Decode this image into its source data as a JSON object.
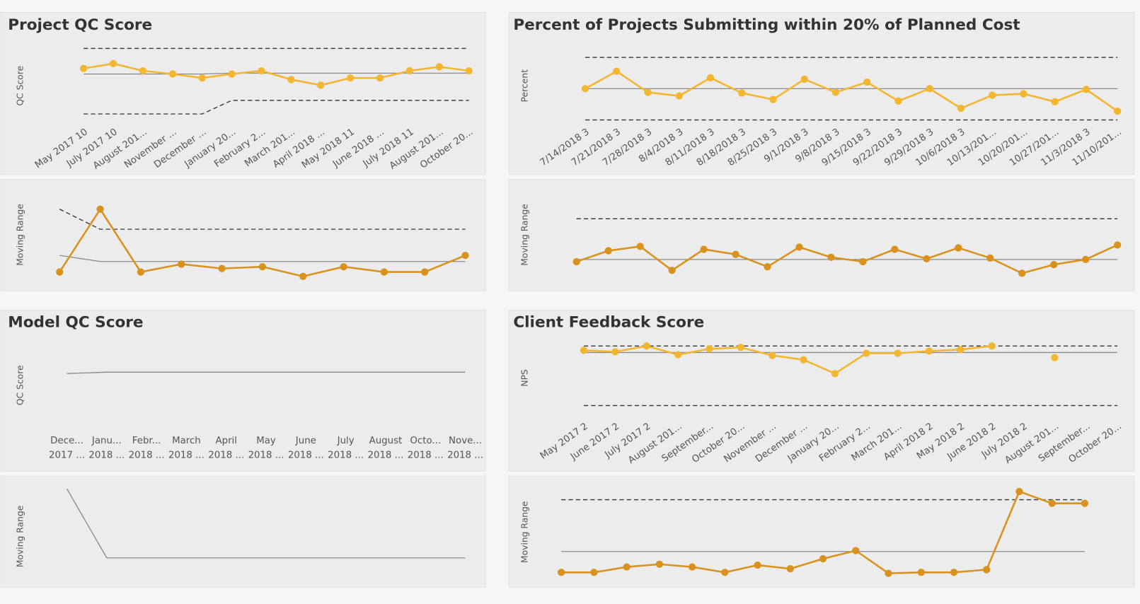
{
  "chart_data": [
    {
      "type": "line",
      "title": "Project QC Score",
      "y_label": "QC Score",
      "color": "#F2B631",
      "ylim": [
        0,
        100
      ],
      "categories": [
        "May 2017 10",
        "July 2017 10",
        "August 201...",
        "November ...",
        "December ...",
        "January 20...",
        "February 2...",
        "March 201...",
        "April 2018 ...",
        "May 2018 11",
        "June 2018 ...",
        "July 2018 11",
        "August 201...",
        "October 20..."
      ],
      "values": [
        69,
        75,
        66,
        62,
        57,
        62,
        66,
        55,
        48,
        57,
        57,
        66,
        71,
        66
      ],
      "center_line": [
        62,
        62,
        62,
        62,
        62,
        63,
        63,
        63,
        63,
        63,
        63,
        63,
        63,
        63
      ],
      "upper_limit": [
        94,
        94,
        94,
        94,
        94,
        94,
        94,
        94,
        94,
        94,
        94,
        94,
        94,
        94
      ],
      "lower_limit": [
        12,
        12,
        12,
        12,
        12,
        29,
        29,
        29,
        29,
        29,
        29,
        29,
        29,
        29
      ]
    },
    {
      "type": "line",
      "y_label": "Moving Range",
      "color": "#D9921E",
      "ylim": [
        0,
        100
      ],
      "values": [
        9,
        81,
        9,
        18,
        13,
        15,
        4,
        15,
        9,
        9,
        28
      ],
      "center_line": [
        28,
        21,
        21,
        21,
        21,
        21,
        21,
        21,
        21,
        21,
        21
      ],
      "upper_limit": [
        81,
        58,
        58,
        58,
        58,
        58,
        58,
        58,
        58,
        58,
        58
      ]
    },
    {
      "type": "line",
      "title": "Percent of Projects Submitting within 20% of Planned Cost",
      "y_label": "Percent",
      "color": "#F2B631",
      "ylim": [
        0,
        100
      ],
      "categories": [
        "7/14/2018 3",
        "7/21/2018 3",
        "7/28/2018 3",
        "8/4/2018 3",
        "8/11/2018 3",
        "8/18/2018 3",
        "8/25/2018 3",
        "9/1/2018 3",
        "9/8/2018 3",
        "9/15/2018 3",
        "9/22/2018 3",
        "9/29/2018 3",
        "10/6/2018 3",
        "10/13/201...",
        "10/20/201...",
        "10/27/201...",
        "11/3/2018 3",
        "11/10/201..."
      ],
      "values": [
        48,
        72,
        43,
        38,
        63,
        42,
        33,
        61,
        43,
        57,
        31,
        48,
        21,
        39,
        41,
        30,
        47,
        17
      ],
      "center_line": [
        48,
        48,
        48,
        48,
        48,
        48,
        48,
        48,
        48,
        48,
        48,
        48,
        48,
        48,
        48,
        48,
        48,
        48
      ],
      "upper_limit": [
        91,
        91,
        91,
        91,
        91,
        91,
        91,
        91,
        91,
        91,
        91,
        91,
        91,
        91,
        91,
        91,
        91,
        91
      ],
      "lower_limit": [
        5,
        5,
        5,
        5,
        5,
        5,
        5,
        5,
        5,
        5,
        5,
        5,
        5,
        5,
        5,
        5,
        5,
        5
      ]
    },
    {
      "type": "line",
      "y_label": "Moving Range",
      "color": "#D9921E",
      "ylim": [
        0,
        100
      ],
      "values": [
        25,
        40,
        46,
        13,
        42,
        35,
        18,
        45,
        31,
        25,
        42,
        29,
        44,
        30,
        9,
        21,
        28,
        48
      ],
      "center_line": [
        28,
        28,
        28,
        28,
        28,
        28,
        28,
        28,
        28,
        28,
        28,
        28,
        28,
        28,
        28,
        28,
        28,
        28
      ],
      "upper_limit": [
        84,
        84,
        84,
        84,
        84,
        84,
        84,
        84,
        84,
        84,
        84,
        84,
        84,
        84,
        84,
        84,
        84,
        84
      ]
    },
    {
      "type": "line",
      "title": "Model QC Score",
      "y_label": "QC Score",
      "color": "#F2B631",
      "ylim": [
        0,
        100
      ],
      "categories": [
        "Dece... 2017 ...",
        "Janu... 2018 ...",
        "Febr... 2018 ...",
        "March 2018 ...",
        "April 2018 ...",
        "May 2018 ...",
        "June 2018 ...",
        "July 2018 ...",
        "August 2018 ...",
        "Octo... 2018 ...",
        "Nove... 2018 ..."
      ],
      "center_line": [
        76,
        78,
        78,
        78,
        78,
        78,
        78,
        78,
        78,
        78,
        78
      ]
    },
    {
      "type": "line",
      "y_label": "Moving Range",
      "color": "#D9921E",
      "ylim": [
        0,
        100
      ],
      "center_line": [
        94,
        18,
        18,
        18,
        18,
        18,
        18,
        18,
        18,
        18,
        18
      ]
    },
    {
      "type": "line",
      "title": "Client Feedback Score",
      "y_label": "NPS",
      "color": "#F2B631",
      "ylim": [
        0,
        100
      ],
      "categories": [
        "May 2017 2",
        "June 2017 2",
        "July 2017 2",
        "August 201...",
        "September...",
        "October 20...",
        "November ...",
        "December ...",
        "January 20...",
        "February 2...",
        "March 201...",
        "April 2018 2",
        "May 2018 2",
        "June 2018 2",
        "July 2018 2",
        "August 201...",
        "September...",
        "October 20..."
      ],
      "values": [
        88,
        86,
        94,
        82,
        90,
        92,
        81,
        75,
        56,
        84,
        84,
        87,
        89,
        94,
        null,
        78,
        null,
        null
      ],
      "center_line": [
        85,
        85,
        85,
        85,
        85,
        85,
        85,
        85,
        85,
        85,
        85,
        85,
        85,
        85,
        85,
        85,
        85,
        85
      ],
      "upper_limit": [
        94,
        94,
        94,
        94,
        94,
        94,
        94,
        94,
        94,
        94,
        94,
        94,
        94,
        94,
        94,
        94,
        94,
        94
      ],
      "lower_limit": [
        12,
        12,
        12,
        12,
        12,
        12,
        12,
        12,
        12,
        12,
        12,
        12,
        12,
        12,
        12,
        12,
        12,
        12
      ]
    },
    {
      "type": "line",
      "y_label": "Moving Range",
      "color": "#D9921E",
      "ylim": [
        0,
        100
      ],
      "values": [
        6,
        6,
        12,
        15,
        12,
        6,
        14,
        10,
        21,
        30,
        5,
        6,
        6,
        9,
        95,
        82,
        82
      ],
      "center_line": [
        29,
        29,
        29,
        29,
        29,
        29,
        29,
        29,
        29,
        29,
        29,
        29,
        29,
        29,
        29,
        29,
        29
      ],
      "upper_limit": [
        86,
        86,
        86,
        86,
        86,
        86,
        86,
        86,
        86,
        86,
        86,
        86,
        86,
        86,
        86,
        86,
        86
      ]
    }
  ]
}
